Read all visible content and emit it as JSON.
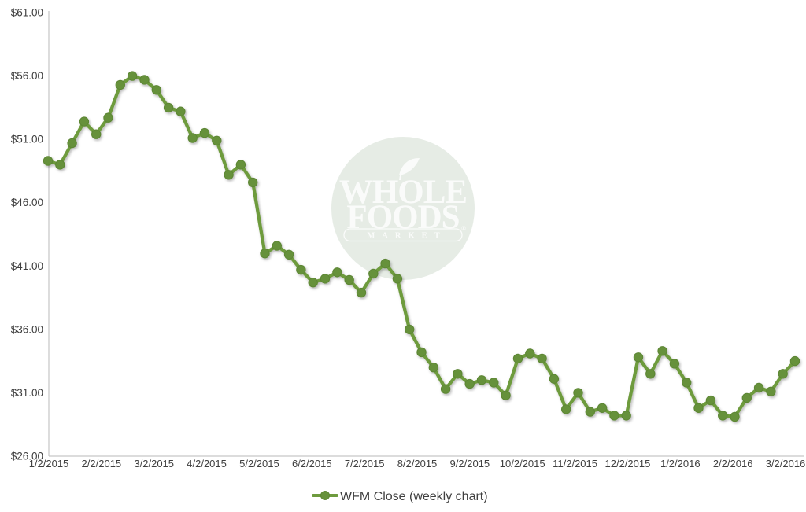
{
  "chart_data": {
    "type": "line",
    "series_name": "WFM Close (weekly chart)",
    "x": [
      "1/2/2015",
      "1/9/2015",
      "1/16/2015",
      "1/23/2015",
      "1/30/2015",
      "2/6/2015",
      "2/13/2015",
      "2/20/2015",
      "2/27/2015",
      "3/6/2015",
      "3/13/2015",
      "3/20/2015",
      "3/27/2015",
      "4/2/2015",
      "4/10/2015",
      "4/17/2015",
      "4/24/2015",
      "5/1/2015",
      "5/8/2015",
      "5/15/2015",
      "5/22/2015",
      "5/29/2015",
      "6/5/2015",
      "6/12/2015",
      "6/19/2015",
      "6/26/2015",
      "7/2/2015",
      "7/10/2015",
      "7/17/2015",
      "7/24/2015",
      "7/31/2015",
      "8/7/2015",
      "8/14/2015",
      "8/21/2015",
      "8/28/2015",
      "9/4/2015",
      "9/11/2015",
      "9/18/2015",
      "9/25/2015",
      "10/2/2015",
      "10/9/2015",
      "10/16/2015",
      "10/23/2015",
      "10/30/2015",
      "11/6/2015",
      "11/13/2015",
      "11/20/2015",
      "11/27/2015",
      "12/4/2015",
      "12/11/2015",
      "12/18/2015",
      "12/24/2015",
      "12/31/2015",
      "1/8/2016",
      "1/15/2016",
      "1/22/2016",
      "1/29/2016",
      "2/5/2016",
      "2/12/2016",
      "2/19/2016",
      "2/26/2016",
      "3/4/2016",
      "3/11/2016"
    ],
    "values": [
      49.3,
      49.0,
      50.7,
      52.4,
      51.4,
      52.7,
      55.3,
      56.0,
      55.7,
      54.9,
      53.5,
      53.2,
      51.1,
      51.5,
      50.9,
      48.2,
      49.0,
      47.6,
      42.0,
      42.6,
      41.9,
      40.7,
      39.7,
      40.0,
      40.5,
      39.9,
      38.9,
      40.4,
      41.2,
      40.0,
      36.0,
      34.2,
      33.0,
      31.3,
      32.5,
      31.7,
      32.0,
      31.8,
      30.8,
      33.7,
      34.1,
      33.7,
      32.1,
      29.7,
      31.0,
      29.5,
      29.8,
      29.2,
      29.2,
      33.8,
      32.5,
      34.3,
      33.3,
      31.8,
      29.8,
      30.4,
      29.2,
      29.1,
      30.6,
      31.4,
      31.1,
      32.5,
      33.5
    ],
    "x_tick_labels": [
      "1/2/2015",
      "2/2/2015",
      "3/2/2015",
      "4/2/2015",
      "5/2/2015",
      "6/2/2015",
      "7/2/2015",
      "8/2/2015",
      "9/2/2015",
      "10/2/2015",
      "11/2/2015",
      "12/2/2015",
      "1/2/2016",
      "2/2/2016",
      "3/2/2016"
    ],
    "y_tick_labels": [
      "$61.00",
      "$56.00",
      "$51.00",
      "$46.00",
      "$41.00",
      "$36.00",
      "$31.00",
      "$26.00"
    ],
    "ylim": [
      26,
      61
    ],
    "y_tick_step": 5,
    "grid": false,
    "legend_position": "bottom-center",
    "line_color": "#6E9B3E",
    "marker_color": "#66913B",
    "marker_stroke": "#5D8634",
    "axis_color": "#C6C6C6",
    "tick_text_color": "#3F3F3F"
  },
  "legend": {
    "label": "WFM Close (weekly chart)"
  },
  "watermark": {
    "line1": "WHOLE",
    "line2": "FOODS",
    "line3": "MARKET",
    "reg_mark": "®",
    "circle_color": "#E6ECE5",
    "text_color": "#FAFBFA"
  }
}
